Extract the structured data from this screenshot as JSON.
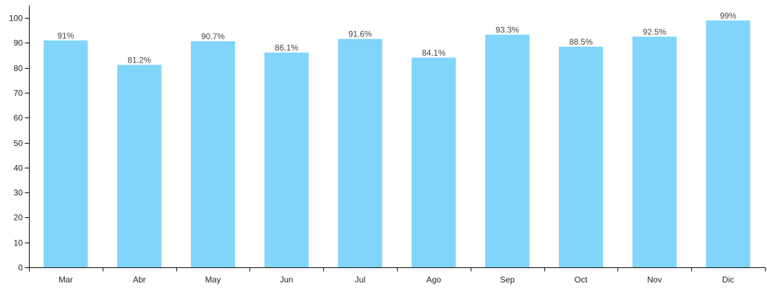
{
  "chart_data": {
    "type": "bar",
    "categories": [
      "Mar",
      "Abr",
      "May",
      "Jun",
      "Jul",
      "Ago",
      "Sep",
      "Oct",
      "Nov",
      "Dic"
    ],
    "values": [
      91,
      81.2,
      90.7,
      86.1,
      91.6,
      84.1,
      93.3,
      88.5,
      92.5,
      99
    ],
    "data_labels": [
      "91%",
      "81.2%",
      "90.7%",
      "86.1%",
      "91.6%",
      "84.1%",
      "93.3%",
      "88.5%",
      "92.5%",
      "99%"
    ],
    "y_ticks": [
      0,
      10,
      20,
      30,
      40,
      50,
      60,
      70,
      80,
      90,
      100
    ],
    "ylim": [
      0,
      105
    ],
    "title": "",
    "xlabel": "",
    "ylabel": "",
    "grid": false,
    "bar_color": "#81d4fa",
    "axis_color": "#000000"
  }
}
